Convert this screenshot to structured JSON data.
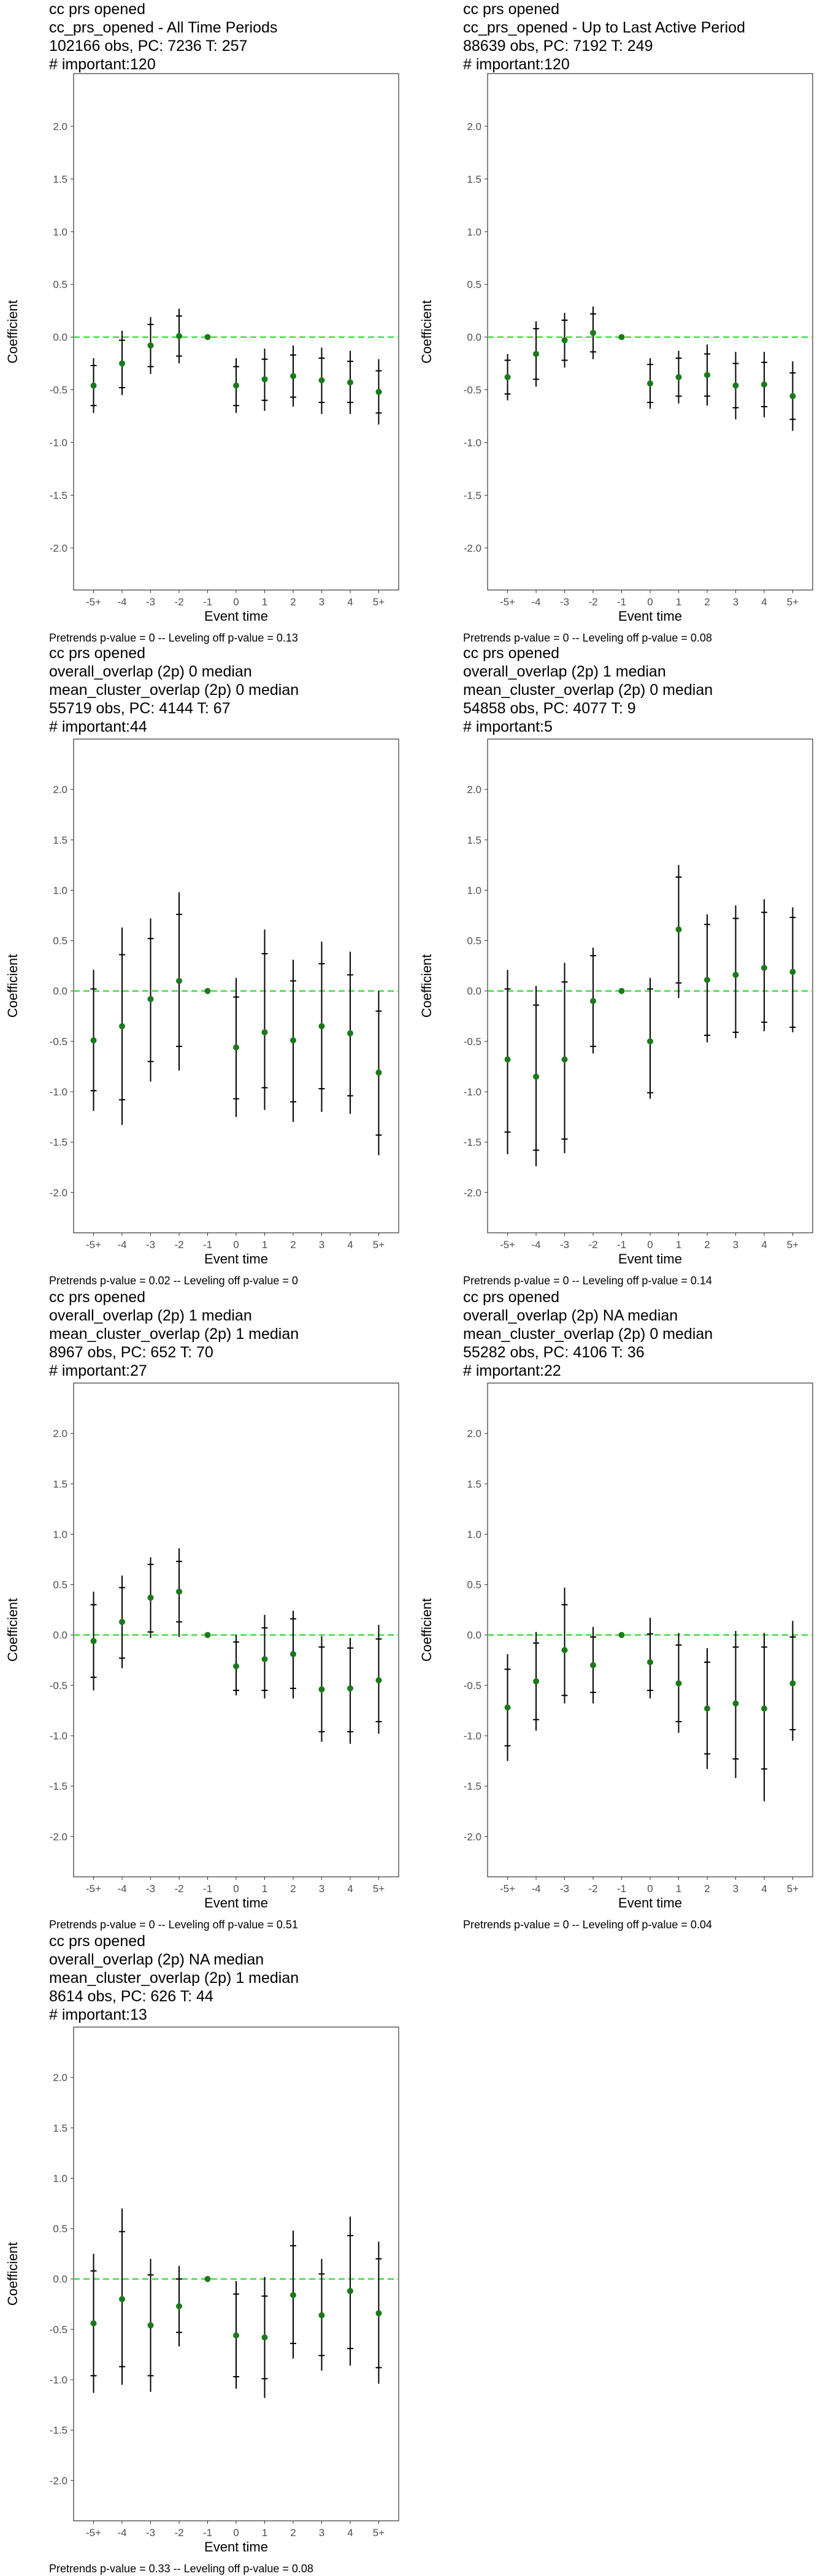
{
  "chart_data": [
    {
      "type": "scatter",
      "title_lines": [
        "cc prs opened",
        "cc_prs_opened - All Time Periods",
        "102166 obs, PC: 7236 T: 257",
        "# important:120"
      ],
      "xlabel": "Event time",
      "ylabel": "Coefficient",
      "categories": [
        "-5+",
        "-4",
        "-3",
        "-2",
        "-1",
        "0",
        "1",
        "2",
        "3",
        "4",
        "5+"
      ],
      "ylim": [
        -2.4,
        2.5
      ],
      "yticks": [
        "-2.0",
        "-1.5",
        "-1.0",
        "-0.5",
        "0.0",
        "0.5",
        "1.0",
        "1.5",
        "2.0"
      ],
      "reference_line": 0.0,
      "estimates": [
        -0.46,
        -0.25,
        -0.08,
        0.01,
        0.0,
        -0.46,
        -0.4,
        -0.37,
        -0.41,
        -0.43,
        -0.52
      ],
      "ci_inner": [
        [
          -0.65,
          -0.27
        ],
        [
          -0.48,
          -0.03
        ],
        [
          -0.28,
          0.12
        ],
        [
          -0.18,
          0.2
        ],
        [
          0.0,
          0.0
        ],
        [
          -0.65,
          -0.28
        ],
        [
          -0.6,
          -0.21
        ],
        [
          -0.57,
          -0.17
        ],
        [
          -0.62,
          -0.2
        ],
        [
          -0.62,
          -0.23
        ],
        [
          -0.72,
          -0.32
        ]
      ],
      "ci_outer": [
        [
          -0.72,
          -0.2
        ],
        [
          -0.55,
          0.06
        ],
        [
          -0.35,
          0.19
        ],
        [
          -0.25,
          0.27
        ],
        [
          0.0,
          0.0
        ],
        [
          -0.72,
          -0.2
        ],
        [
          -0.7,
          -0.11
        ],
        [
          -0.66,
          -0.08
        ],
        [
          -0.73,
          -0.1
        ],
        [
          -0.73,
          -0.13
        ],
        [
          -0.83,
          -0.21
        ]
      ],
      "caption": "Pretrends p-value = 0 -- Leveling off p-value = 0.13",
      "colors": {
        "point": "#1a7a1a",
        "reference": "#44dd44",
        "ci": "#000000"
      }
    },
    {
      "type": "scatter",
      "title_lines": [
        "cc prs opened",
        "cc_prs_opened - Up to Last Active Period",
        "88639 obs, PC: 7192 T: 249",
        "# important:120"
      ],
      "xlabel": "Event time",
      "ylabel": "Coefficient",
      "categories": [
        "-5+",
        "-4",
        "-3",
        "-2",
        "-1",
        "0",
        "1",
        "2",
        "3",
        "4",
        "5+"
      ],
      "ylim": [
        -2.4,
        2.5
      ],
      "yticks": [
        "-2.0",
        "-1.5",
        "-1.0",
        "-0.5",
        "0.0",
        "0.5",
        "1.0",
        "1.5",
        "2.0"
      ],
      "reference_line": 0.0,
      "estimates": [
        -0.38,
        -0.16,
        -0.03,
        0.04,
        0.0,
        -0.44,
        -0.38,
        -0.36,
        -0.46,
        -0.45,
        -0.56
      ],
      "ci_inner": [
        [
          -0.54,
          -0.22
        ],
        [
          -0.4,
          0.08
        ],
        [
          -0.22,
          0.16
        ],
        [
          -0.14,
          0.22
        ],
        [
          0.0,
          0.0
        ],
        [
          -0.62,
          -0.26
        ],
        [
          -0.56,
          -0.2
        ],
        [
          -0.56,
          -0.16
        ],
        [
          -0.67,
          -0.25
        ],
        [
          -0.66,
          -0.24
        ],
        [
          -0.78,
          -0.34
        ]
      ],
      "ci_outer": [
        [
          -0.6,
          -0.16
        ],
        [
          -0.47,
          0.15
        ],
        [
          -0.29,
          0.23
        ],
        [
          -0.21,
          0.29
        ],
        [
          0.0,
          0.0
        ],
        [
          -0.68,
          -0.2
        ],
        [
          -0.63,
          -0.13
        ],
        [
          -0.65,
          -0.07
        ],
        [
          -0.78,
          -0.14
        ],
        [
          -0.76,
          -0.14
        ],
        [
          -0.89,
          -0.23
        ]
      ],
      "caption": "Pretrends p-value = 0 -- Leveling off p-value = 0.08",
      "colors": {
        "point": "#1a7a1a",
        "reference": "#44dd44",
        "ci": "#000000"
      }
    },
    {
      "type": "scatter",
      "title_lines": [
        "cc prs opened",
        "overall_overlap (2p) 0 median",
        "mean_cluster_overlap (2p) 0 median",
        "55719 obs, PC: 4144 T: 67",
        "# important:44"
      ],
      "xlabel": "Event time",
      "ylabel": "Coefficient",
      "categories": [
        "-5+",
        "-4",
        "-3",
        "-2",
        "-1",
        "0",
        "1",
        "2",
        "3",
        "4",
        "5+"
      ],
      "ylim": [
        -2.4,
        2.5
      ],
      "yticks": [
        "-2.0",
        "-1.5",
        "-1.0",
        "-0.5",
        "0.0",
        "0.5",
        "1.0",
        "1.5",
        "2.0"
      ],
      "reference_line": 0.0,
      "estimates": [
        -0.49,
        -0.35,
        -0.08,
        0.1,
        0.0,
        -0.56,
        -0.41,
        -0.49,
        -0.35,
        -0.42,
        -0.81
      ],
      "ci_inner": [
        [
          -0.99,
          0.02
        ],
        [
          -1.08,
          0.36
        ],
        [
          -0.7,
          0.52
        ],
        [
          -0.55,
          0.76
        ],
        [
          0.0,
          0.0
        ],
        [
          -1.07,
          -0.06
        ],
        [
          -0.96,
          0.37
        ],
        [
          -1.1,
          0.1
        ],
        [
          -0.97,
          0.27
        ],
        [
          -1.04,
          0.16
        ],
        [
          -1.43,
          -0.2
        ]
      ],
      "ci_outer": [
        [
          -1.19,
          0.21
        ],
        [
          -1.33,
          0.63
        ],
        [
          -0.9,
          0.72
        ],
        [
          -0.79,
          0.98
        ],
        [
          0.0,
          0.0
        ],
        [
          -1.25,
          0.13
        ],
        [
          -1.18,
          0.61
        ],
        [
          -1.3,
          0.31
        ],
        [
          -1.2,
          0.49
        ],
        [
          -1.22,
          0.39
        ],
        [
          -1.63,
          0.0
        ]
      ],
      "caption": "Pretrends p-value = 0.02 -- Leveling off p-value = 0",
      "colors": {
        "point": "#1a7a1a",
        "reference": "#44dd44",
        "ci": "#000000"
      }
    },
    {
      "type": "scatter",
      "title_lines": [
        "cc prs opened",
        "overall_overlap (2p) 1 median",
        "mean_cluster_overlap (2p) 0 median",
        "54858 obs, PC: 4077 T: 9",
        "# important:5"
      ],
      "xlabel": "Event time",
      "ylabel": "Coefficient",
      "categories": [
        "-5+",
        "-4",
        "-3",
        "-2",
        "-1",
        "0",
        "1",
        "2",
        "3",
        "4",
        "5+"
      ],
      "ylim": [
        -2.4,
        2.5
      ],
      "yticks": [
        "-2.0",
        "-1.5",
        "-1.0",
        "-0.5",
        "0.0",
        "0.5",
        "1.0",
        "1.5",
        "2.0"
      ],
      "reference_line": 0.0,
      "estimates": [
        -0.68,
        -0.85,
        -0.68,
        -0.1,
        0.0,
        -0.5,
        0.61,
        0.11,
        0.16,
        0.23,
        0.19
      ],
      "ci_inner": [
        [
          -1.4,
          0.02
        ],
        [
          -1.58,
          -0.14
        ],
        [
          -1.47,
          0.09
        ],
        [
          -0.55,
          0.35
        ],
        [
          0.0,
          0.0
        ],
        [
          -1.01,
          0.02
        ],
        [
          0.08,
          1.13
        ],
        [
          -0.44,
          0.66
        ],
        [
          -0.41,
          0.72
        ],
        [
          -0.31,
          0.78
        ],
        [
          -0.36,
          0.73
        ]
      ],
      "ci_outer": [
        [
          -1.62,
          0.21
        ],
        [
          -1.74,
          0.05
        ],
        [
          -1.61,
          0.28
        ],
        [
          -0.62,
          0.43
        ],
        [
          0.0,
          0.0
        ],
        [
          -1.07,
          0.13
        ],
        [
          -0.07,
          1.25
        ],
        [
          -0.51,
          0.76
        ],
        [
          -0.47,
          0.85
        ],
        [
          -0.4,
          0.91
        ],
        [
          -0.41,
          0.83
        ]
      ],
      "caption": "Pretrends p-value = 0 -- Leveling off p-value = 0.14",
      "colors": {
        "point": "#1a7a1a",
        "reference": "#44dd44",
        "ci": "#000000"
      }
    },
    {
      "type": "scatter",
      "title_lines": [
        "cc prs opened",
        "overall_overlap (2p) 1 median",
        "mean_cluster_overlap (2p) 1 median",
        "8967 obs, PC: 652 T: 70",
        "# important:27"
      ],
      "xlabel": "Event time",
      "ylabel": "Coefficient",
      "categories": [
        "-5+",
        "-4",
        "-3",
        "-2",
        "-1",
        "0",
        "1",
        "2",
        "3",
        "4",
        "5+"
      ],
      "ylim": [
        -2.4,
        2.5
      ],
      "yticks": [
        "-2.0",
        "-1.5",
        "-1.0",
        "-0.5",
        "0.0",
        "0.5",
        "1.0",
        "1.5",
        "2.0"
      ],
      "reference_line": 0.0,
      "estimates": [
        -0.06,
        0.13,
        0.37,
        0.43,
        0.0,
        -0.31,
        -0.24,
        -0.19,
        -0.54,
        -0.53,
        -0.45
      ],
      "ci_inner": [
        [
          -0.42,
          0.3
        ],
        [
          -0.23,
          0.47
        ],
        [
          0.03,
          0.7
        ],
        [
          0.13,
          0.73
        ],
        [
          0.0,
          0.0
        ],
        [
          -0.55,
          -0.07
        ],
        [
          -0.55,
          0.07
        ],
        [
          -0.53,
          0.16
        ],
        [
          -0.96,
          -0.12
        ],
        [
          -0.96,
          -0.13
        ],
        [
          -0.86,
          -0.04
        ]
      ],
      "ci_outer": [
        [
          -0.55,
          0.43
        ],
        [
          -0.33,
          0.59
        ],
        [
          -0.03,
          0.77
        ],
        [
          -0.02,
          0.86
        ],
        [
          0.0,
          0.0
        ],
        [
          -0.6,
          0.0
        ],
        [
          -0.63,
          0.2
        ],
        [
          -0.63,
          0.24
        ],
        [
          -1.06,
          -0.01
        ],
        [
          -1.08,
          -0.03
        ],
        [
          -0.98,
          0.1
        ]
      ],
      "caption": "Pretrends p-value = 0 -- Leveling off p-value = 0.51",
      "colors": {
        "point": "#1a7a1a",
        "reference": "#44dd44",
        "ci": "#000000"
      }
    },
    {
      "type": "scatter",
      "title_lines": [
        "cc prs opened",
        "overall_overlap (2p) NA median",
        "mean_cluster_overlap (2p) 0 median",
        "55282 obs, PC: 4106 T: 36",
        "# important:22"
      ],
      "xlabel": "Event time",
      "ylabel": "Coefficient",
      "categories": [
        "-5+",
        "-4",
        "-3",
        "-2",
        "-1",
        "0",
        "1",
        "2",
        "3",
        "4",
        "5+"
      ],
      "ylim": [
        -2.4,
        2.5
      ],
      "yticks": [
        "-2.0",
        "-1.5",
        "-1.0",
        "-0.5",
        "0.0",
        "0.5",
        "1.0",
        "1.5",
        "2.0"
      ],
      "reference_line": 0.0,
      "estimates": [
        -0.72,
        -0.46,
        -0.15,
        -0.3,
        0.0,
        -0.27,
        -0.48,
        -0.73,
        -0.68,
        -0.73,
        -0.48
      ],
      "ci_inner": [
        [
          -1.1,
          -0.34
        ],
        [
          -0.84,
          -0.08
        ],
        [
          -0.6,
          0.3
        ],
        [
          -0.57,
          -0.02
        ],
        [
          0.0,
          0.0
        ],
        [
          -0.55,
          0.01
        ],
        [
          -0.86,
          -0.1
        ],
        [
          -1.18,
          -0.27
        ],
        [
          -1.23,
          -0.12
        ],
        [
          -1.33,
          -0.12
        ],
        [
          -0.94,
          -0.02
        ]
      ],
      "ci_outer": [
        [
          -1.25,
          -0.19
        ],
        [
          -0.95,
          0.03
        ],
        [
          -0.68,
          0.47
        ],
        [
          -0.68,
          0.08
        ],
        [
          0.0,
          0.0
        ],
        [
          -0.63,
          0.17
        ],
        [
          -0.97,
          0.02
        ],
        [
          -1.33,
          -0.13
        ],
        [
          -1.42,
          0.04
        ],
        [
          -1.65,
          0.02
        ],
        [
          -1.05,
          0.14
        ]
      ],
      "caption": "Pretrends p-value = 0 -- Leveling off p-value = 0.04",
      "colors": {
        "point": "#1a7a1a",
        "reference": "#44dd44",
        "ci": "#000000"
      }
    },
    {
      "type": "scatter",
      "title_lines": [
        "cc prs opened",
        "overall_overlap (2p) NA median",
        "mean_cluster_overlap (2p) 1 median",
        "8614 obs, PC: 626 T: 44",
        "# important:13"
      ],
      "xlabel": "Event time",
      "ylabel": "Coefficient",
      "categories": [
        "-5+",
        "-4",
        "-3",
        "-2",
        "-1",
        "0",
        "1",
        "2",
        "3",
        "4",
        "5+"
      ],
      "ylim": [
        -2.4,
        2.5
      ],
      "yticks": [
        "-2.0",
        "-1.5",
        "-1.0",
        "-0.5",
        "0.0",
        "0.5",
        "1.0",
        "1.5",
        "2.0"
      ],
      "reference_line": 0.0,
      "estimates": [
        -0.44,
        -0.2,
        -0.46,
        -0.27,
        0.0,
        -0.56,
        -0.58,
        -0.16,
        -0.36,
        -0.12,
        -0.34
      ],
      "ci_inner": [
        [
          -0.96,
          0.08
        ],
        [
          -0.87,
          0.47
        ],
        [
          -0.96,
          0.04
        ],
        [
          -0.53,
          0.0
        ],
        [
          0.0,
          0.0
        ],
        [
          -0.97,
          -0.15
        ],
        [
          -0.99,
          -0.17
        ],
        [
          -0.64,
          0.33
        ],
        [
          -0.76,
          0.05
        ],
        [
          -0.69,
          0.43
        ],
        [
          -0.88,
          0.2
        ]
      ],
      "ci_outer": [
        [
          -1.13,
          0.25
        ],
        [
          -1.05,
          0.7
        ],
        [
          -1.12,
          0.2
        ],
        [
          -0.67,
          0.13
        ],
        [
          0.0,
          0.0
        ],
        [
          -1.09,
          -0.02
        ],
        [
          -1.18,
          0.02
        ],
        [
          -0.79,
          0.48
        ],
        [
          -0.91,
          0.2
        ],
        [
          -0.86,
          0.62
        ],
        [
          -1.04,
          0.37
        ]
      ],
      "caption": "Pretrends p-value = 0.33 -- Leveling off p-value = 0.08",
      "colors": {
        "point": "#1a7a1a",
        "reference": "#44dd44",
        "ci": "#000000"
      }
    }
  ]
}
